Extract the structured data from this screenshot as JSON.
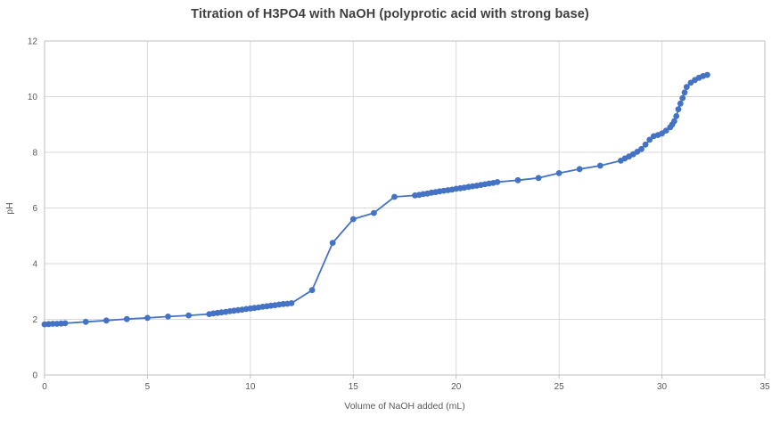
{
  "chart": {
    "title": "Titration of H3PO4 with NaOH (polyprotic acid with strong base)",
    "xlabel": "Volume of NaOH added (mL)",
    "ylabel": "pH"
  },
  "chart_data": {
    "type": "line",
    "title": "Titration of H3PO4 with NaOH (polyprotic acid with strong base)",
    "xlabel": "Volume of NaOH added (mL)",
    "ylabel": "pH",
    "xlim": [
      0,
      35
    ],
    "ylim": [
      0,
      12
    ],
    "xticks": [
      0,
      5,
      10,
      15,
      20,
      25,
      30,
      35
    ],
    "yticks": [
      0,
      2,
      4,
      6,
      8,
      10,
      12
    ],
    "grid": true,
    "legend": "none",
    "marker": "circle",
    "series_color": "#4472C4",
    "gridline_color": "#D9D9D9",
    "axis_text_color": "#595959",
    "title_color": "#3f3f3f",
    "points": [
      [
        0,
        1.82
      ],
      [
        0.2,
        1.83
      ],
      [
        0.4,
        1.84
      ],
      [
        0.6,
        1.84
      ],
      [
        0.8,
        1.85
      ],
      [
        1,
        1.86
      ],
      [
        2,
        1.91
      ],
      [
        3,
        1.96
      ],
      [
        4,
        2.01
      ],
      [
        5,
        2.05
      ],
      [
        6,
        2.1
      ],
      [
        7,
        2.14
      ],
      [
        8,
        2.19
      ],
      [
        8.2,
        2.21
      ],
      [
        8.4,
        2.23
      ],
      [
        8.6,
        2.25
      ],
      [
        8.8,
        2.27
      ],
      [
        9,
        2.29
      ],
      [
        9.2,
        2.31
      ],
      [
        9.4,
        2.33
      ],
      [
        9.6,
        2.35
      ],
      [
        9.8,
        2.37
      ],
      [
        10,
        2.39
      ],
      [
        10.2,
        2.41
      ],
      [
        10.4,
        2.43
      ],
      [
        10.6,
        2.45
      ],
      [
        10.8,
        2.47
      ],
      [
        11,
        2.49
      ],
      [
        11.2,
        2.51
      ],
      [
        11.4,
        2.53
      ],
      [
        11.6,
        2.55
      ],
      [
        11.8,
        2.56
      ],
      [
        12,
        2.58
      ],
      [
        13,
        3.05
      ],
      [
        14,
        4.75
      ],
      [
        15,
        5.6
      ],
      [
        16,
        5.82
      ],
      [
        17,
        6.4
      ],
      [
        18,
        6.45
      ],
      [
        18.2,
        6.47
      ],
      [
        18.4,
        6.5
      ],
      [
        18.6,
        6.52
      ],
      [
        18.8,
        6.55
      ],
      [
        19,
        6.57
      ],
      [
        19.2,
        6.6
      ],
      [
        19.4,
        6.62
      ],
      [
        19.6,
        6.64
      ],
      [
        19.8,
        6.66
      ],
      [
        20,
        6.69
      ],
      [
        20.2,
        6.71
      ],
      [
        20.4,
        6.73
      ],
      [
        20.6,
        6.76
      ],
      [
        20.8,
        6.78
      ],
      [
        21,
        6.8
      ],
      [
        21.2,
        6.83
      ],
      [
        21.4,
        6.85
      ],
      [
        21.6,
        6.88
      ],
      [
        21.8,
        6.9
      ],
      [
        22,
        6.93
      ],
      [
        23,
        7.0
      ],
      [
        24,
        7.08
      ],
      [
        25,
        7.25
      ],
      [
        26,
        7.4
      ],
      [
        27,
        7.52
      ],
      [
        28,
        7.7
      ],
      [
        28.2,
        7.78
      ],
      [
        28.4,
        7.85
      ],
      [
        28.6,
        7.93
      ],
      [
        28.8,
        8.02
      ],
      [
        29,
        8.12
      ],
      [
        29.2,
        8.28
      ],
      [
        29.4,
        8.45
      ],
      [
        29.6,
        8.58
      ],
      [
        29.8,
        8.62
      ],
      [
        30,
        8.68
      ],
      [
        30.2,
        8.78
      ],
      [
        30.4,
        8.9
      ],
      [
        30.5,
        9.0
      ],
      [
        30.6,
        9.12
      ],
      [
        30.7,
        9.3
      ],
      [
        30.8,
        9.55
      ],
      [
        30.9,
        9.75
      ],
      [
        31,
        9.95
      ],
      [
        31.1,
        10.15
      ],
      [
        31.2,
        10.35
      ],
      [
        31.4,
        10.5
      ],
      [
        31.6,
        10.6
      ],
      [
        31.8,
        10.68
      ],
      [
        32,
        10.74
      ],
      [
        32.2,
        10.78
      ]
    ]
  }
}
